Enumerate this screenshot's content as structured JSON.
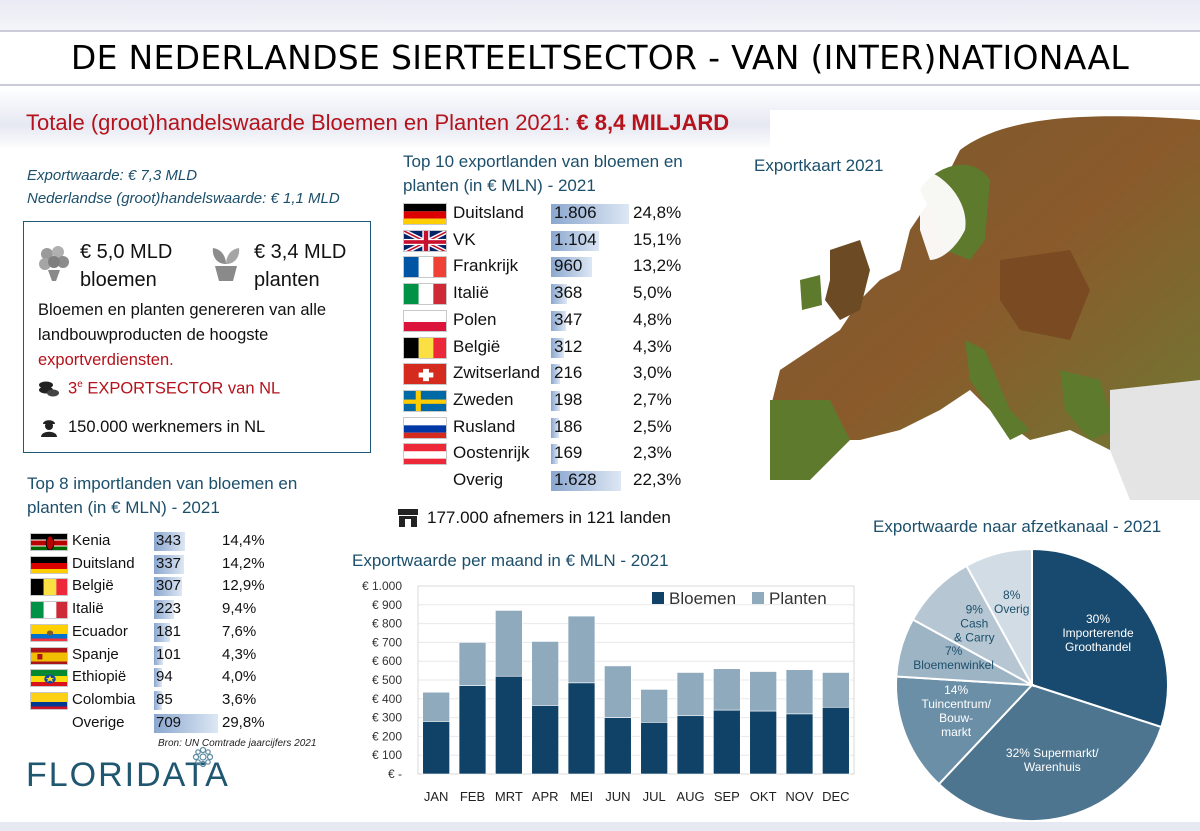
{
  "main_title": "DE NEDERLANDSE SIERTEELTSECTOR - VAN (INTER)NATIONAAL BELANG!",
  "subtitle": {
    "text": "Totale (groot)handelswaarde Bloemen en Planten 2021: ",
    "value": "€ 8,4 MILJARD"
  },
  "export_lines": [
    "Exportwaarde: € 7,3 MLD",
    "Nederlandse (groot)handelswaarde: € 1,1 MLD"
  ],
  "infobox": {
    "flowers_value": "€ 5,0 MLD",
    "flowers_label": "bloemen",
    "plants_value": "€ 3,4 MLD",
    "plants_label": "planten",
    "paragraph": "Bloemen en planten genereren van alle landbouwproducten de hoogste",
    "paragraph_red": "exportverdiensten.",
    "sector_pre": "3",
    "sector_sup": "e",
    "sector_post": " EXPORTSECTOR van NL",
    "workers": "150.000 werknemers in NL",
    "icons": [
      "flower-bouquet-icon",
      "potted-plant-icon",
      "coins-icon",
      "worker-icon"
    ]
  },
  "top10": {
    "title": "Top 10 exportlanden van bloemen en planten (in € MLN) - 2021",
    "rows": [
      {
        "name": "Duitsland",
        "value": "1.806",
        "pct": "24,8%",
        "amount": 1806,
        "flag": "de"
      },
      {
        "name": "VK",
        "value": "1.104",
        "pct": "15,1%",
        "amount": 1104,
        "flag": "uk"
      },
      {
        "name": "Frankrijk",
        "value": "960",
        "pct": "13,2%",
        "amount": 960,
        "flag": "fr"
      },
      {
        "name": "Italië",
        "value": "368",
        "pct": "5,0%",
        "amount": 368,
        "flag": "it"
      },
      {
        "name": "Polen",
        "value": "347",
        "pct": "4,8%",
        "amount": 347,
        "flag": "pl"
      },
      {
        "name": "België",
        "value": "312",
        "pct": "4,3%",
        "amount": 312,
        "flag": "be"
      },
      {
        "name": "Zwitserland",
        "value": "216",
        "pct": "3,0%",
        "amount": 216,
        "flag": "ch"
      },
      {
        "name": "Zweden",
        "value": "198",
        "pct": "2,7%",
        "amount": 198,
        "flag": "se"
      },
      {
        "name": "Rusland",
        "value": "186",
        "pct": "2,5%",
        "amount": 186,
        "flag": "ru"
      },
      {
        "name": "Oostenrijk",
        "value": "169",
        "pct": "2,3%",
        "amount": 169,
        "flag": "at"
      },
      {
        "name": "Overig",
        "value": "1.628",
        "pct": "22,3%",
        "amount": 1628,
        "flag": ""
      }
    ]
  },
  "afnemers": "177.000 afnemers in 121 landen",
  "top8": {
    "title": "Top 8 importlanden van bloemen en planten (in €  MLN) - 2021",
    "rows": [
      {
        "name": "Kenia",
        "value": "343",
        "pct": "14,4%",
        "amount": 343,
        "flag": "ke"
      },
      {
        "name": "Duitsland",
        "value": "337",
        "pct": "14,2%",
        "amount": 337,
        "flag": "de"
      },
      {
        "name": "België",
        "value": "307",
        "pct": "12,9%",
        "amount": 307,
        "flag": "be"
      },
      {
        "name": "Italië",
        "value": "223",
        "pct": "9,4%",
        "amount": 223,
        "flag": "it"
      },
      {
        "name": "Ecuador",
        "value": "181",
        "pct": "7,6%",
        "amount": 181,
        "flag": "ec"
      },
      {
        "name": "Spanje",
        "value": "101",
        "pct": "4,3%",
        "amount": 101,
        "flag": "es"
      },
      {
        "name": "Ethiopië",
        "value": "94",
        "pct": "4,0%",
        "amount": 94,
        "flag": "et"
      },
      {
        "name": "Colombia",
        "value": "85",
        "pct": "3,6%",
        "amount": 85,
        "flag": "co"
      },
      {
        "name": "Overige",
        "value": "709",
        "pct": "29,8%",
        "amount": 709,
        "flag": ""
      }
    ],
    "source": "Bron: UN Comtrade jaarcijfers 2021"
  },
  "map_title": "Exportkaart 2021",
  "logo": "FLORIDATA",
  "colors": {
    "dark_blue": "#0f4266",
    "light_blue": "#8fa9bd",
    "red": "#b5121b",
    "teal_text": "#1c4f6b",
    "map_brown": "#8a5a2b",
    "map_green": "#5e7a2c"
  },
  "chart_data": [
    {
      "type": "bar",
      "stacked": true,
      "title": "Exportwaarde per maand in € MLN - 2021",
      "categories": [
        "JAN",
        "FEB",
        "MRT",
        "APR",
        "MEI",
        "JUN",
        "JUL",
        "AUG",
        "SEP",
        "OKT",
        "NOV",
        "DEC"
      ],
      "series": [
        {
          "name": "Bloemen",
          "color": "#0f4266",
          "values": [
            280,
            470,
            520,
            365,
            485,
            300,
            275,
            310,
            340,
            335,
            320,
            355
          ]
        },
        {
          "name": "Planten",
          "color": "#8fa9bd",
          "values": [
            155,
            230,
            350,
            340,
            355,
            275,
            175,
            230,
            220,
            210,
            235,
            185
          ]
        }
      ],
      "yticks": [
        "€ -",
        "€ 100",
        "€ 200",
        "€ 300",
        "€ 400",
        "€ 500",
        "€ 600",
        "€ 700",
        "€ 800",
        "€ 900",
        "€ 1.000"
      ],
      "ylim": [
        0,
        1000
      ],
      "legend": "top-right"
    },
    {
      "type": "pie",
      "title": "Exportwaarde naar afzetkanaal - 2021",
      "slices": [
        {
          "pct": "30%",
          "label": "Importerende Groothandel",
          "value": 30,
          "color": "#174a6e"
        },
        {
          "pct": "32%",
          "label": "Supermarkt/ Warenhuis",
          "value": 32,
          "color": "#4d7590"
        },
        {
          "pct": "14%",
          "label": "Tuincentrum/ Bouw- markt",
          "value": 14,
          "color": "#6b8fa6"
        },
        {
          "pct": "7%",
          "label": "Bloemenwinkel",
          "value": 7,
          "color": "#9db4c4"
        },
        {
          "pct": "9%",
          "label": "Cash & Carry",
          "value": 9,
          "color": "#b6c7d3"
        },
        {
          "pct": "8%",
          "label": "Overig",
          "value": 8,
          "color": "#d1dce4"
        }
      ]
    }
  ]
}
